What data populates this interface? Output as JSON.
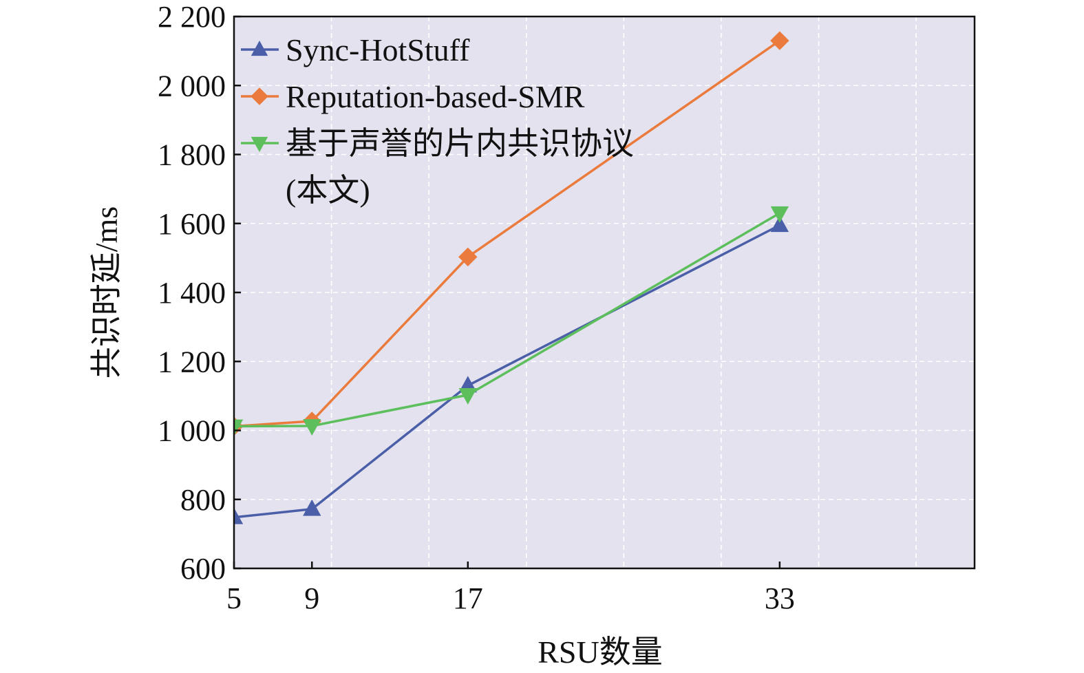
{
  "chart_data": {
    "type": "line",
    "xlabel": "RSU数量",
    "ylabel": "共识时延/ms",
    "x": [
      5,
      9,
      17,
      33
    ],
    "x_ticks": [
      5,
      9,
      17,
      33
    ],
    "x_tick_labels": [
      "5",
      "9",
      "17",
      "33"
    ],
    "xlim": [
      5,
      43
    ],
    "ylim": [
      600,
      2200
    ],
    "y_ticks": [
      600,
      800,
      1000,
      1200,
      1400,
      1600,
      1800,
      2000,
      2200
    ],
    "y_tick_labels": [
      "600",
      "800",
      "1 000",
      "1 200",
      "1 400",
      "1 600",
      "1 800",
      "2 000",
      "2 200"
    ],
    "grid": true,
    "grid_style": "white dashed",
    "plot_background": "#e3e2ee",
    "legend_position": "top-left",
    "series": [
      {
        "name": "Sync-HotStuff",
        "values": [
          748,
          772,
          1130,
          1595
        ],
        "color": "#4a5fa8",
        "marker": "triangle-up"
      },
      {
        "name": "Reputation-based-SMR",
        "values": [
          1012,
          1027,
          1503,
          2130
        ],
        "color": "#ea7b3c",
        "marker": "diamond"
      },
      {
        "name": "基于声誉的片内共识协议",
        "name_line2": "(本文)",
        "values": [
          1012,
          1013,
          1103,
          1630
        ],
        "color": "#5cbf5c",
        "marker": "triangle-down"
      }
    ]
  }
}
